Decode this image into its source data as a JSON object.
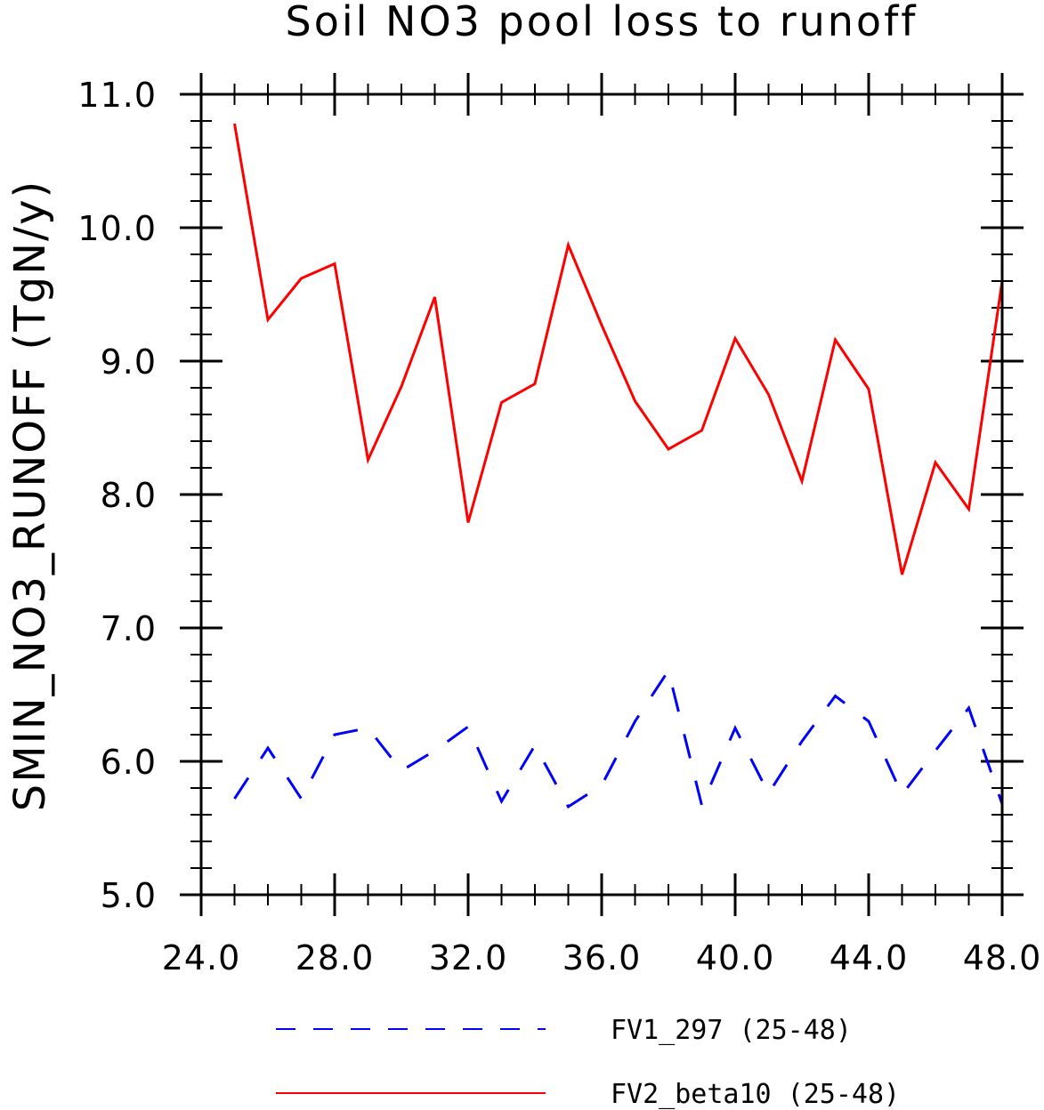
{
  "chart_data": {
    "type": "line",
    "title": "Soil NO3 pool loss to runoff",
    "xlabel": "",
    "ylabel": "SMIN_NO3_RUNOFF   (TgN/y)",
    "xlim": [
      24,
      48
    ],
    "ylim": [
      5,
      11
    ],
    "x_ticks": [
      24,
      28,
      32,
      36,
      40,
      44,
      48
    ],
    "x_tick_labels": [
      "24.0",
      "28.0",
      "32.0",
      "36.0",
      "40.0",
      "44.0",
      "48.0"
    ],
    "y_ticks": [
      5,
      6,
      7,
      8,
      9,
      10,
      11
    ],
    "y_tick_labels": [
      "5.0",
      "6.0",
      "7.0",
      "8.0",
      "9.0",
      "10.0",
      "11.0"
    ],
    "x_minor_step": 1,
    "y_minor_step": 0.2,
    "grid": false,
    "legend_position": "bottom",
    "x": [
      25,
      26,
      27,
      28,
      29,
      30,
      31,
      32,
      33,
      34,
      35,
      36,
      37,
      38,
      39,
      40,
      41,
      42,
      43,
      44,
      45,
      46,
      47,
      48
    ],
    "series": [
      {
        "name": "FV1_297 (25-48)",
        "color": "#0000ff",
        "style": "dashed",
        "values": [
          5.72,
          6.1,
          5.72,
          6.2,
          6.25,
          5.93,
          6.08,
          6.26,
          5.7,
          6.12,
          5.66,
          5.82,
          6.3,
          6.68,
          5.67,
          6.25,
          5.76,
          6.15,
          6.49,
          6.3,
          5.75,
          6.08,
          6.4,
          5.68
        ]
      },
      {
        "name": "FV2_beta10 (25-48)",
        "color": "#ff0000",
        "style": "solid",
        "values": [
          10.78,
          9.31,
          9.62,
          9.73,
          8.26,
          8.81,
          9.48,
          7.79,
          8.69,
          8.83,
          9.87,
          9.27,
          8.7,
          8.34,
          8.48,
          9.17,
          8.75,
          8.1,
          9.16,
          8.79,
          7.4,
          8.24,
          7.89,
          9.6
        ]
      }
    ]
  }
}
